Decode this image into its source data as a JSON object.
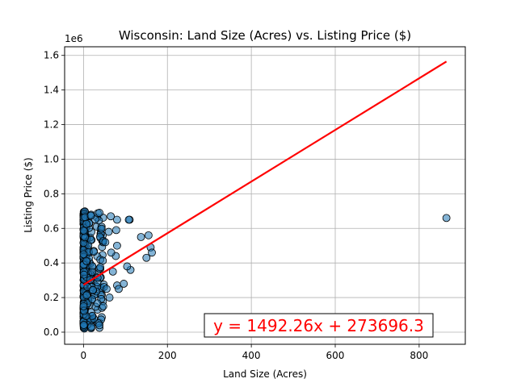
{
  "chart_data": {
    "type": "scatter",
    "title": "Wisconsin: Land Size (Acres) vs. Listing Price ($)",
    "xlabel": "Land Size (Acres)",
    "ylabel": "Listing Price ($)",
    "y_scale_label": "1e6",
    "xlim": [
      -45,
      910
    ],
    "ylim": [
      -0.07,
      1.65
    ],
    "xticks": [
      0,
      200,
      400,
      600,
      800
    ],
    "xtick_labels": [
      "0",
      "200",
      "400",
      "600",
      "800"
    ],
    "yticks": [
      0.0,
      0.2,
      0.4,
      0.6,
      0.8,
      1.0,
      1.2,
      1.4,
      1.6
    ],
    "ytick_labels": [
      "0.0",
      "0.2",
      "0.4",
      "0.6",
      "0.8",
      "1.0",
      "1.2",
      "1.4",
      "1.6"
    ],
    "grid": true,
    "point_color": "#1f77b4",
    "regression": {
      "slope": 1492.26,
      "intercept": 273696.3,
      "x_range": [
        0,
        865
      ],
      "color": "#ff0000",
      "equation": "y = 1492.26x + 273696.3"
    },
    "outliers": [
      {
        "x": 865,
        "y": 0.66
      },
      {
        "x": 110,
        "y": 0.65
      },
      {
        "x": 108,
        "y": 0.65
      },
      {
        "x": 155,
        "y": 0.56
      },
      {
        "x": 160,
        "y": 0.49
      },
      {
        "x": 163,
        "y": 0.46
      },
      {
        "x": 150,
        "y": 0.43
      },
      {
        "x": 137,
        "y": 0.55
      },
      {
        "x": 112,
        "y": 0.36
      },
      {
        "x": 104,
        "y": 0.38
      },
      {
        "x": 96,
        "y": 0.28
      },
      {
        "x": 80,
        "y": 0.65
      },
      {
        "x": 78,
        "y": 0.59
      },
      {
        "x": 80,
        "y": 0.5
      },
      {
        "x": 77,
        "y": 0.44
      },
      {
        "x": 80,
        "y": 0.27
      },
      {
        "x": 84,
        "y": 0.25
      },
      {
        "x": 65,
        "y": 0.67
      },
      {
        "x": 38,
        "y": 0.69
      },
      {
        "x": 60,
        "y": 0.58
      },
      {
        "x": 52,
        "y": 0.52
      },
      {
        "x": 47,
        "y": 0.15
      },
      {
        "x": 38,
        "y": 0.04
      },
      {
        "x": 62,
        "y": 0.2
      },
      {
        "x": 55,
        "y": 0.25
      },
      {
        "x": 70,
        "y": 0.35
      },
      {
        "x": 66,
        "y": 0.46
      }
    ],
    "cluster": {
      "x_range": [
        0,
        50
      ],
      "y_range": [
        0.02,
        0.7
      ],
      "count": 520
    }
  }
}
